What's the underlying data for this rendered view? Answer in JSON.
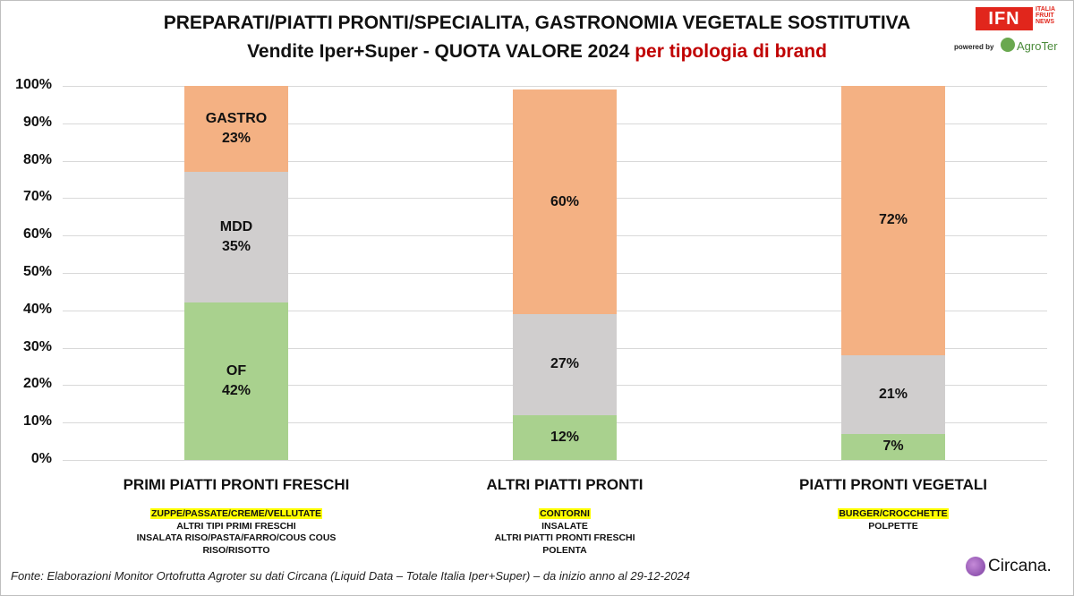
{
  "header": {
    "title_line1": "PREPARATI/PIATTI PRONTI/SPECIALITA, GASTRONOMIA VEGETALE SOSTITUTIVA",
    "title_line2_main": "Vendite Iper+Super - QUOTA VALORE 2024",
    "title_line2_accent": "per tipologia di brand"
  },
  "logos": {
    "ifn": "IFN",
    "ifn_sub": [
      "ITALIA",
      "FRUIT",
      "NEWS"
    ],
    "powered_by": "powered by",
    "agroter": "AgroTer",
    "circana": "Circana."
  },
  "colors": {
    "of": "#a9d18e",
    "mdd": "#d0cece",
    "gastro": "#f4b183",
    "title_accent": "#c00000",
    "highlight": "#ffff00"
  },
  "chart_data": {
    "type": "bar",
    "stacked": true,
    "yticks": [
      "0%",
      "10%",
      "20%",
      "30%",
      "40%",
      "50%",
      "60%",
      "70%",
      "80%",
      "90%",
      "100%"
    ],
    "ylim": [
      0,
      100
    ],
    "grid": true,
    "categories": [
      "PRIMI PIATTI PRONTI FRESCHI",
      "ALTRI PIATTI PRONTI",
      "PIATTI PRONTI VEGETALI"
    ],
    "series": [
      {
        "name": "OF",
        "values": [
          42,
          12,
          7
        ]
      },
      {
        "name": "MDD",
        "values": [
          35,
          27,
          21
        ]
      },
      {
        "name": "GASTRO",
        "values": [
          23,
          60,
          72
        ]
      }
    ],
    "segment_labels": [
      [
        "OF\n42%",
        "MDD\n35%",
        "GASTRO\n23%"
      ],
      [
        "12%",
        "27%",
        "60%"
      ],
      [
        "7%",
        "21%",
        "72%"
      ]
    ],
    "subcategories": [
      {
        "highlighted": "ZUPPE/PASSATE/CREME/VELLUTATE",
        "items": [
          "ALTRI TIPI PRIMI FRESCHI",
          "INSALATA RISO/PASTA/FARRO/COUS COUS",
          "RISO/RISOTTO"
        ]
      },
      {
        "highlighted": "CONTORNI",
        "items": [
          "INSALATE",
          "ALTRI PIATTI PRONTI FRESCHI",
          "POLENTA"
        ]
      },
      {
        "highlighted": "BURGER/CROCCHETTE",
        "items": [
          "POLPETTE"
        ]
      }
    ]
  },
  "footer": {
    "source": "Fonte: Elaborazioni Monitor Ortofrutta Agroter su dati Circana (Liquid Data – Totale Italia Iper+Super) – da inizio anno al 29-12-2024"
  }
}
